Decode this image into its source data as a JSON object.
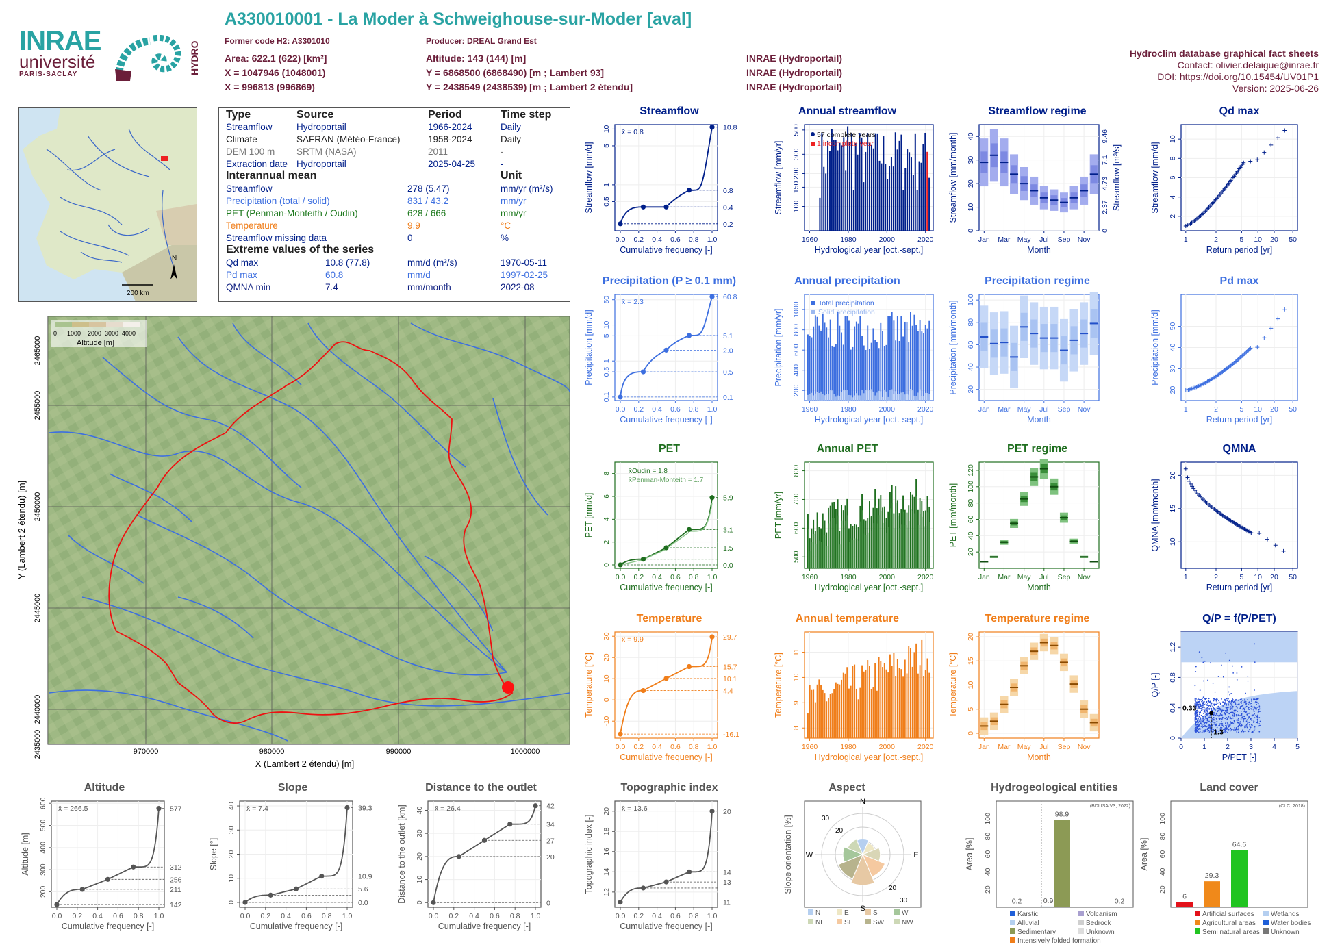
{
  "header": {
    "title": "A330010001 - La Moder à Schweighouse-sur-Moder [aval]",
    "former_code": "Former code H2: A3301010",
    "producer": "Producer: DREAL Grand Est",
    "area": "Area: 622.1 (622) [km²]",
    "altitude": "Altitude: 143 (144) [m]",
    "x93": "X = 1047946 (1048001)",
    "y93": "Y = 6868500 (6868490) [m ; Lambert 93]",
    "x2e": "X = 996813 (996869)",
    "y2e": "Y = 2438549 (2438539) [m ; Lambert 2 étendu]",
    "src1": "INRAE (Hydroportail)",
    "src2": "INRAE (Hydroportail)",
    "src3": "INRAE (Hydroportail)",
    "right1": "Hydroclim database graphical fact sheets",
    "right2": "Contact: olivier.delaigue@inrae.fr",
    "right3": "DOI: https://doi.org/10.15454/UV01P1",
    "right4": "Version: 2025-06-26"
  },
  "logo": {
    "inrae": "INRAE",
    "univ": "université",
    "ps": "PARIS-SACLAY",
    "hydro": "HYDRO"
  },
  "minimap": {
    "scale": "200 km",
    "north": "N"
  },
  "info": {
    "cols": [
      "Type",
      "Source",
      "Period",
      "Time step"
    ],
    "rows": [
      [
        "Streamflow",
        "Hydroportail",
        "1966-2024",
        "Daily"
      ],
      [
        "Climate",
        "SAFRAN (Météo-France)",
        "1958-2024",
        "Daily"
      ],
      [
        "DEM 100 m",
        "SRTM (NASA)",
        "2011",
        "-"
      ],
      [
        "Extraction date",
        "Hydroportail",
        "2025-04-25",
        "-"
      ]
    ],
    "mean_title": "Interannual mean",
    "unit_title": "Unit",
    "means": [
      [
        "Streamflow",
        "278 (5.47)",
        "mm/yr (m³/s)"
      ],
      [
        "Precipitation (total / solid)",
        "831 / 43.2",
        "mm/yr"
      ],
      [
        "PET (Penman-Monteith / Oudin)",
        "628 / 666",
        "mm/yr"
      ],
      [
        "Temperature",
        "9.9",
        "°C"
      ],
      [
        "Streamflow missing data",
        "0",
        "%"
      ]
    ],
    "ext_title": "Extreme values of the series",
    "extremes": [
      [
        "Qd max",
        "10.8 (77.8)",
        "mm/d (m³/s)",
        "1970-05-11"
      ],
      [
        "Pd max",
        "60.8",
        "mm/d",
        "1997-02-25"
      ],
      [
        "QMNA min",
        "7.4",
        "mm/month",
        "2022-08"
      ]
    ]
  },
  "map": {
    "legend_title": "Altitude [m]",
    "legend_ticks": [
      "0",
      "1000",
      "2000",
      "3000",
      "4000"
    ],
    "xlabel": "X (Lambert 2 étendu) [m]",
    "ylabel": "Y (Lambert 2 étendu) [m]",
    "xticks": [
      "970000",
      "980000",
      "990000",
      "1000000"
    ],
    "yticks": [
      "2435000",
      "2440000",
      "2445000",
      "2450000",
      "2455000",
      "2460000",
      "2465000"
    ]
  },
  "panels": {
    "streamflow": {
      "title": "Streamflow",
      "ylabel": "Streamflow [mm/d]",
      "xlabel": "Cumulative frequency [-]",
      "mean": "x̄ = 0.8",
      "right": [
        "10.8",
        "0.8",
        "0.4",
        "0.2"
      ],
      "yt": [
        "10",
        "5",
        "1",
        "0.5"
      ]
    },
    "ann_streamflow": {
      "title": "Annual streamflow",
      "ylabel": "Streamflow [mm/yr]",
      "xlabel": "Hydrological year [oct.-sept.]",
      "leg1": "57 complete years",
      "leg2": "1 incomplete year",
      "yt": [
        "100",
        "150",
        "200",
        "300",
        "500"
      ],
      "xt": [
        "1960",
        "1980",
        "2000",
        "2020"
      ]
    },
    "streamflow_regime": {
      "title": "Streamflow regime",
      "ylabel": "Streamflow [mm/month]",
      "ylabel2": "Streamflow [m³/s]",
      "xlabel": "Month",
      "yt": [
        "0",
        "10",
        "20",
        "30",
        "40"
      ],
      "yt2": [
        "0",
        "2.37",
        "4.73",
        "7.1",
        "9.46"
      ],
      "xt": [
        "Jan",
        "Mar",
        "May",
        "Jul",
        "Sep",
        "Nov"
      ]
    },
    "qd_max": {
      "title": "Qd max",
      "ylabel": "Streamflow [mm/d]",
      "xlabel": "Return period [yr]",
      "yt": [
        "2",
        "4",
        "6",
        "8",
        "10"
      ],
      "xt": [
        "1",
        "2",
        "5",
        "10",
        "20",
        "50"
      ]
    },
    "precip": {
      "title": "Precipitation (P ≥ 0.1 mm)",
      "ylabel": "Precipitation [mm/d]",
      "xlabel": "Cumulative frequency [-]",
      "mean": "x̄ = 2.3",
      "right": [
        "60.8",
        "5.1",
        "2.0",
        "0.5",
        "0.1"
      ],
      "yt": [
        "50",
        "10",
        "5",
        "1",
        "0.5",
        "0.1"
      ]
    },
    "ann_precip": {
      "title": "Annual precipitation",
      "ylabel": "Precipitation [mm/yr]",
      "xlabel": "Hydrological year [oct.-sept.]",
      "leg1": "Total precipitation",
      "leg2": "Solid precipitation",
      "yt": [
        "200",
        "400",
        "600",
        "800",
        "1000"
      ],
      "xt": [
        "1960",
        "1980",
        "2000",
        "2020"
      ]
    },
    "precip_regime": {
      "title": "Precipitation regime",
      "ylabel": "Precipitation [mm/month]",
      "xlabel": "Month",
      "yt": [
        "20",
        "40",
        "60",
        "80",
        "100"
      ],
      "xt": [
        "Jan",
        "Mar",
        "May",
        "Jul",
        "Sep",
        "Nov"
      ]
    },
    "pd_max": {
      "title": "Pd max",
      "ylabel": "Precipitation [mm/d]",
      "xlabel": "Return period [yr]",
      "yt": [
        "20",
        "30",
        "40",
        "50"
      ],
      "xt": [
        "1",
        "2",
        "5",
        "10",
        "20",
        "50"
      ]
    },
    "pet": {
      "title": "PET",
      "ylabel": "PET [mm/d]",
      "xlabel": "Cumulative frequency [-]",
      "mean1": "x̄Oudin = 1.8",
      "mean2": "x̄Penman-Monteith = 1.7",
      "right": [
        "5.9",
        "3.1",
        "1.5",
        "0.0"
      ],
      "yt": [
        "0",
        "2",
        "4",
        "6",
        "8"
      ]
    },
    "ann_pet": {
      "title": "Annual PET",
      "ylabel": "PET [mm/yr]",
      "xlabel": "Hydrological year [oct.-sept.]",
      "yt": [
        "500",
        "600",
        "700",
        "800"
      ],
      "xt": [
        "1960",
        "1980",
        "2000",
        "2020"
      ]
    },
    "pet_regime": {
      "title": "PET regime",
      "ylabel": "PET [mm/month]",
      "xlabel": "Month",
      "yt": [
        "20",
        "40",
        "60",
        "80",
        "100",
        "120"
      ],
      "xt": [
        "Jan",
        "Mar",
        "May",
        "Jul",
        "Sep",
        "Nov"
      ]
    },
    "qmna": {
      "title": "QMNA",
      "ylabel": "QMNA [mm/month]",
      "xlabel": "Return period [yr]",
      "yt": [
        "10",
        "15",
        "20"
      ],
      "xt": [
        "1",
        "2",
        "5",
        "10",
        "20",
        "50"
      ]
    },
    "temp": {
      "title": "Temperature",
      "ylabel": "Temperature [°C]",
      "xlabel": "Cumulative frequency [-]",
      "mean": "x̄ = 9.9",
      "right": [
        "29.7",
        "15.7",
        "10.1",
        "4.4",
        "-16.1"
      ],
      "yt": [
        "-10",
        "0",
        "10",
        "20",
        "30"
      ]
    },
    "ann_temp": {
      "title": "Annual temperature",
      "ylabel": "Temperature [°C]",
      "xlabel": "Hydrological year [oct.-sept.]",
      "yt": [
        "8",
        "9",
        "10",
        "11"
      ],
      "xt": [
        "1960",
        "1980",
        "2000",
        "2020"
      ]
    },
    "temp_regime": {
      "title": "Temperature regime",
      "ylabel": "Temperature [°C]",
      "xlabel": "Month",
      "yt": [
        "0",
        "5",
        "10",
        "15",
        "20"
      ],
      "xt": [
        "Jan",
        "Mar",
        "May",
        "Jul",
        "Sep",
        "Nov"
      ]
    },
    "qp": {
      "title": "Q/P = f(P/PET)",
      "ylabel": "Q/P [-]",
      "xlabel": "P/PET [-]",
      "lab1": "0.33",
      "lab2": "1.3",
      "yt": [
        "0",
        "0.4",
        "0.8",
        "1.2"
      ],
      "xt": [
        "0",
        "1",
        "2",
        "3",
        "4",
        "5"
      ]
    },
    "altitude": {
      "title": "Altitude",
      "ylabel": "Altitude [m]",
      "xlabel": "Cumulative frequency [-]",
      "mean": "x̄ = 266.5",
      "right": [
        "577",
        "312",
        "256",
        "211",
        "142"
      ],
      "yt": [
        "200",
        "300",
        "400",
        "500",
        "600"
      ]
    },
    "slope": {
      "title": "Slope",
      "ylabel": "Slope [°]",
      "xlabel": "Cumulative frequency [-]",
      "mean": "x̄ = 7.4",
      "right": [
        "39.3",
        "10.9",
        "5.6",
        "0.0"
      ],
      "yt": [
        "0",
        "10",
        "20",
        "30",
        "40"
      ]
    },
    "distance": {
      "title": "Distance to the outlet",
      "ylabel": "Distance to the outlet [km]",
      "xlabel": "Cumulative frequency [-]",
      "mean": "x̄ = 26.4",
      "right": [
        "42",
        "34",
        "27",
        "20",
        "0"
      ],
      "yt": [
        "0",
        "10",
        "20",
        "30",
        "40"
      ]
    },
    "topo": {
      "title": "Topographic index",
      "ylabel": "Topographic index [-]",
      "xlabel": "Cumulative frequency [-]",
      "mean": "x̄ = 13.6",
      "right": [
        "20",
        "14",
        "13",
        "11"
      ],
      "yt": [
        "12",
        "14",
        "16",
        "18",
        "20"
      ]
    },
    "aspect": {
      "title": "Aspect",
      "ylabel": "Slope orientation [%]",
      "dirs": [
        "N",
        "E",
        "S",
        "W"
      ],
      "rings": [
        "10",
        "20",
        "30"
      ],
      "legend": [
        "N",
        "E",
        "S",
        "W",
        "NE",
        "SE",
        "SW",
        "NW"
      ]
    },
    "hydrogeo": {
      "title": "Hydrogeological entities",
      "ylabel": "Area [%]",
      "source": "(BDLISA V3, 2022)",
      "values": [
        "0.2",
        "0.9",
        "98.9",
        "0.2"
      ],
      "legend": [
        "Karstic",
        "Volcanism",
        "Alluvial",
        "Bedrock",
        "Sedimentary",
        "Unknown",
        "Intensively folded formation"
      ],
      "yt": [
        "0",
        "20",
        "40",
        "60",
        "80",
        "100"
      ]
    },
    "landcover": {
      "title": "Land cover",
      "ylabel": "Area [%]",
      "source": "(CLC, 2018)",
      "values": [
        "6",
        "29.3",
        "64.6"
      ],
      "legend": [
        "Artificial surfaces",
        "Wetlands",
        "Agricultural areas",
        "Water bodies",
        "Semi natural areas",
        "Unknown"
      ],
      "yt": [
        "0",
        "20",
        "40",
        "60",
        "80",
        "100"
      ]
    }
  },
  "chart_data": [
    {
      "type": "line",
      "title": "Streamflow",
      "xlabel": "Cumulative frequency [-]",
      "ylabel": "Streamflow [mm/d]",
      "x": [
        0,
        0.25,
        0.5,
        0.75,
        1.0
      ],
      "y": [
        0.2,
        0.4,
        0.4,
        0.8,
        10.8
      ]
    },
    {
      "type": "bar",
      "title": "Annual streamflow",
      "xlabel": "Hydrological year [oct.-sept.]",
      "ylabel": "Streamflow [mm/yr]",
      "series": [
        {
          "name": "57 complete years"
        },
        {
          "name": "1 incomplete year"
        }
      ],
      "ylim": [
        60,
        560
      ]
    },
    {
      "type": "bar",
      "title": "Streamflow regime",
      "categories": [
        "Jan",
        "Feb",
        "Mar",
        "Apr",
        "May",
        "Jun",
        "Jul",
        "Aug",
        "Sep",
        "Oct",
        "Nov",
        "Dec"
      ],
      "values": [
        29,
        32,
        29,
        24,
        20,
        17,
        14,
        13,
        12,
        14,
        17,
        24
      ],
      "ylabel": "Streamflow [mm/month]",
      "ylim": [
        0,
        45
      ]
    },
    {
      "type": "scatter",
      "title": "Qd max",
      "xlabel": "Return period [yr]",
      "ylabel": "Streamflow [mm/d]",
      "ylim": [
        0.5,
        11.5
      ]
    },
    {
      "type": "line",
      "title": "Precipitation (P ≥ 0.1 mm)",
      "x": [
        0,
        0.25,
        0.5,
        0.75,
        1.0
      ],
      "y": [
        0.1,
        0.5,
        2.0,
        5.1,
        60.8
      ],
      "ylabel": "Precipitation [mm/d]"
    },
    {
      "type": "bar",
      "title": "Annual precipitation",
      "series": [
        {
          "name": "Total precipitation"
        },
        {
          "name": "Solid precipitation"
        }
      ],
      "ylim": [
        100,
        1150
      ]
    },
    {
      "type": "bar",
      "title": "Precipitation regime",
      "categories": [
        "Jan",
        "Feb",
        "Mar",
        "Apr",
        "May",
        "Jun",
        "Jul",
        "Aug",
        "Sep",
        "Oct",
        "Nov",
        "Dec"
      ],
      "values": [
        67,
        61,
        62,
        49,
        76,
        70,
        66,
        66,
        55,
        64,
        70,
        79
      ],
      "ylim": [
        10,
        105
      ]
    },
    {
      "type": "scatter",
      "title": "Pd max",
      "ylim": [
        15,
        65
      ]
    },
    {
      "type": "line",
      "title": "PET",
      "x": [
        0,
        0.25,
        0.5,
        0.75,
        1.0
      ],
      "y": [
        0.0,
        0.5,
        1.5,
        3.1,
        5.9
      ],
      "ylabel": "PET [mm/d]"
    },
    {
      "type": "bar",
      "title": "Annual PET",
      "ylim": [
        460,
        830
      ]
    },
    {
      "type": "bar",
      "title": "PET regime",
      "categories": [
        "Jan",
        "Feb",
        "Mar",
        "Apr",
        "May",
        "Jun",
        "Jul",
        "Aug",
        "Sep",
        "Oct",
        "Nov",
        "Dec"
      ],
      "values": [
        8,
        14,
        32,
        55,
        85,
        112,
        122,
        100,
        62,
        33,
        14,
        8
      ],
      "ylim": [
        0,
        130
      ]
    },
    {
      "type": "scatter",
      "title": "QMNA",
      "ylim": [
        6,
        22
      ]
    },
    {
      "type": "line",
      "title": "Temperature",
      "x": [
        0,
        0.25,
        0.5,
        0.75,
        1.0
      ],
      "y": [
        -16.1,
        4.4,
        10.1,
        15.7,
        29.7
      ],
      "ylabel": "Temperature [°C]"
    },
    {
      "type": "bar",
      "title": "Annual temperature",
      "ylim": [
        7.6,
        11.8
      ]
    },
    {
      "type": "bar",
      "title": "Temperature regime",
      "categories": [
        "Jan",
        "Feb",
        "Mar",
        "Apr",
        "May",
        "Jun",
        "Jul",
        "Aug",
        "Sep",
        "Oct",
        "Nov",
        "Dec"
      ],
      "values": [
        1.5,
        2.5,
        6,
        9.5,
        14,
        17,
        18.8,
        18.2,
        14.7,
        10.2,
        5,
        2.2
      ],
      "ylim": [
        -1,
        21
      ]
    },
    {
      "type": "scatter",
      "title": "Q/P = f(P/PET)",
      "xlabel": "P/PET [-]",
      "ylabel": "Q/P [-]",
      "xlim": [
        0,
        5
      ],
      "ylim": [
        0,
        1.4
      ]
    },
    {
      "type": "line",
      "title": "Altitude",
      "x": [
        0,
        0.25,
        0.5,
        0.75,
        1.0
      ],
      "y": [
        142,
        211,
        256,
        312,
        577
      ]
    },
    {
      "type": "line",
      "title": "Slope",
      "x": [
        0,
        0.25,
        0.5,
        0.75,
        1.0
      ],
      "y": [
        0.0,
        3.0,
        5.6,
        10.9,
        39.3
      ]
    },
    {
      "type": "line",
      "title": "Distance to the outlet",
      "x": [
        0,
        0.25,
        0.5,
        0.75,
        1.0
      ],
      "y": [
        0,
        20,
        27,
        34,
        42
      ]
    },
    {
      "type": "line",
      "title": "Topographic index",
      "x": [
        0,
        0.25,
        0.5,
        0.75,
        1.0
      ],
      "y": [
        11,
        12.4,
        13,
        14,
        20
      ]
    },
    {
      "type": "bar",
      "title": "Hydrogeological entities",
      "categories": [
        "Karstic",
        "Alluvial",
        "Sedimentary",
        "Bedrock"
      ],
      "values": [
        0.2,
        0.9,
        98.9,
        0.2
      ],
      "ylim": [
        0,
        100
      ]
    },
    {
      "type": "bar",
      "title": "Land cover",
      "categories": [
        "Artificial surfaces",
        "Agricultural areas",
        "Semi natural areas"
      ],
      "values": [
        6,
        29.3,
        64.6
      ],
      "ylim": [
        0,
        100
      ]
    }
  ]
}
